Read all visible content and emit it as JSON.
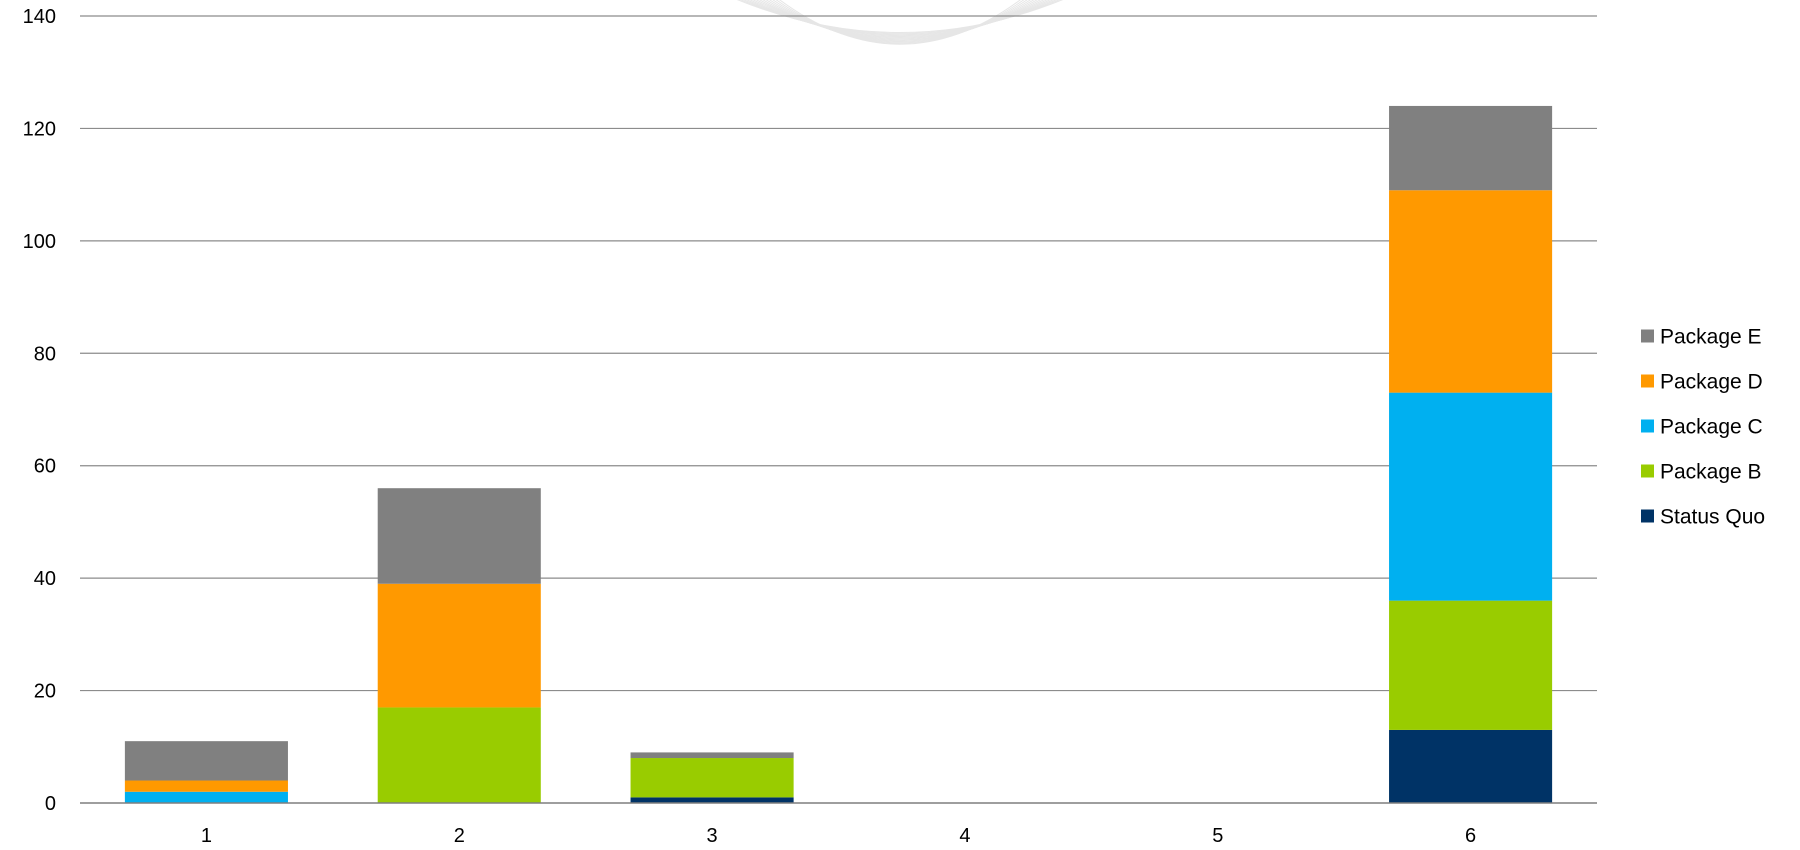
{
  "chart_data": {
    "type": "bar",
    "stacked": true,
    "categories": [
      "1",
      "2",
      "3",
      "4",
      "5",
      "6"
    ],
    "series": [
      {
        "name": "Status Quo",
        "color": "#003366",
        "values": [
          0,
          0,
          1,
          0,
          0,
          13
        ]
      },
      {
        "name": "Package B",
        "color": "#99cc00",
        "values": [
          0,
          17,
          7,
          0,
          0,
          23
        ]
      },
      {
        "name": "Package C",
        "color": "#00b0f0",
        "values": [
          2,
          0,
          0,
          0,
          0,
          37
        ]
      },
      {
        "name": "Package D",
        "color": "#ff9900",
        "values": [
          2,
          22,
          0,
          0,
          0,
          36
        ]
      },
      {
        "name": "Package E",
        "color": "#808080",
        "values": [
          7,
          17,
          1,
          0,
          0,
          15
        ]
      }
    ],
    "ylim": [
      0,
      140
    ],
    "yticks": [
      "0",
      "20",
      "40",
      "60",
      "80",
      "100",
      "120",
      "140"
    ],
    "grid": true,
    "legend": "right",
    "legend_order": [
      "Package E",
      "Package D",
      "Package C",
      "Package B",
      "Status Quo"
    ],
    "title": "",
    "xlabel": "",
    "ylabel": ""
  }
}
